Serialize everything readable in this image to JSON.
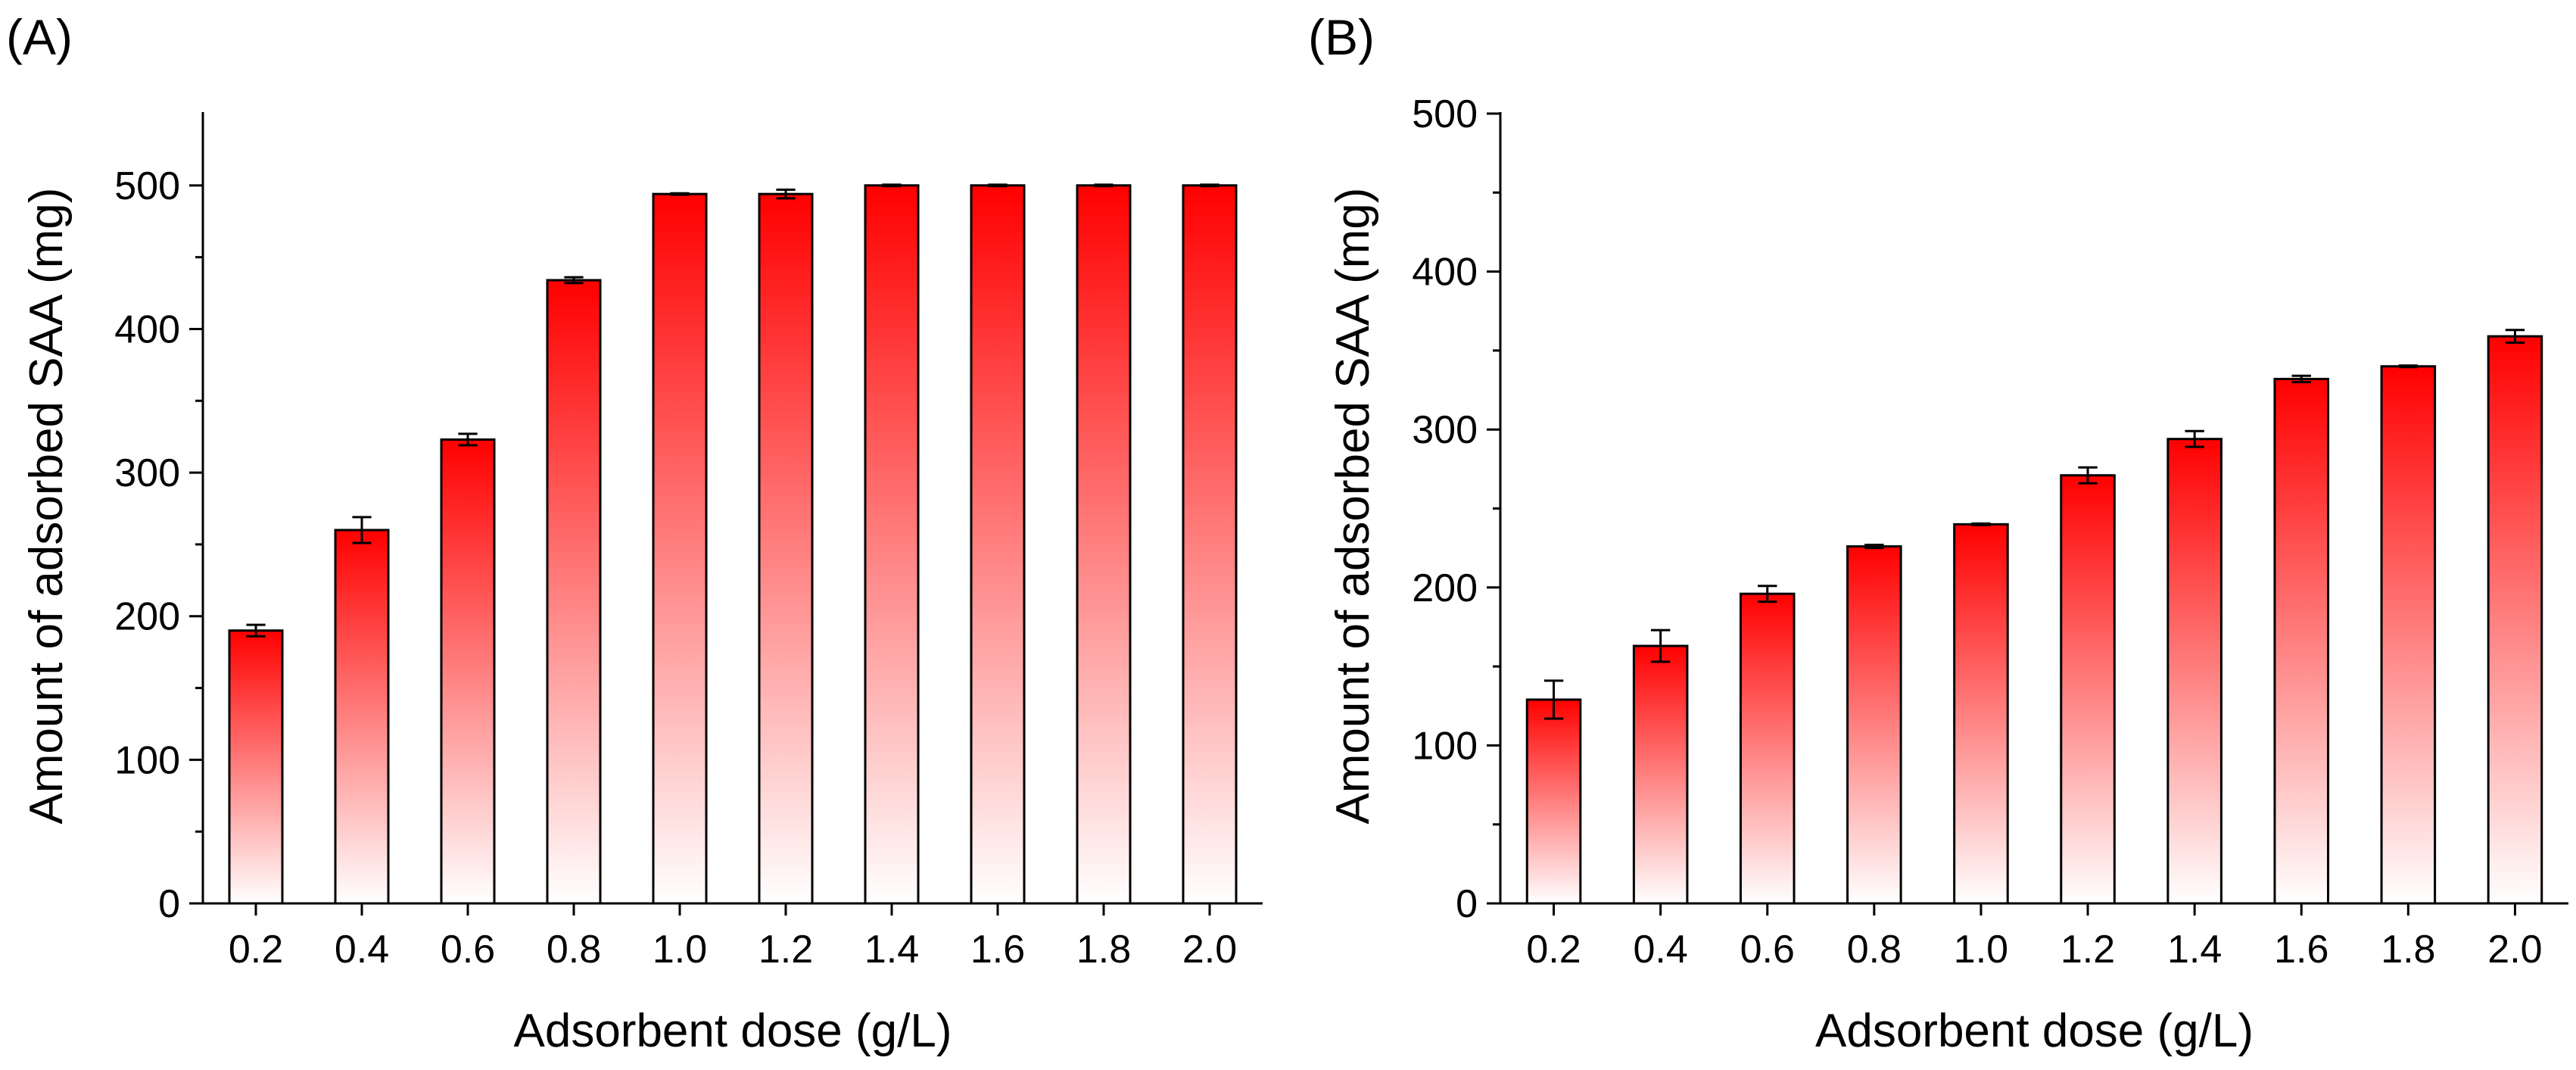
{
  "figure": {
    "panel_a_label": "(A)",
    "panel_b_label": "(B)"
  },
  "colors": {
    "bar_top": "#ff0000",
    "bar_bottom": "#ffffff",
    "axis": "#000000"
  },
  "chart_data": [
    {
      "type": "bar",
      "panel": "(A)",
      "title": "",
      "xlabel": "Adsorbent dose (g/L)",
      "ylabel": "Amount of adsorbed SAA (mg)",
      "categories": [
        "0.2",
        "0.4",
        "0.6",
        "0.8",
        "1.0",
        "1.2",
        "1.4",
        "1.6",
        "1.8",
        "2.0"
      ],
      "values": [
        190,
        260,
        323,
        434,
        494,
        494,
        500,
        500,
        500,
        500
      ],
      "errors": [
        4,
        9,
        4,
        2,
        0.5,
        3,
        0.5,
        0.5,
        0.5,
        0.5
      ],
      "ylim": [
        0,
        550
      ],
      "yticks": [
        0,
        100,
        200,
        300,
        400,
        500
      ],
      "ytick_labels": [
        "0",
        "100",
        "200",
        "300",
        "400",
        "500"
      ],
      "grid": false,
      "legend": "none"
    },
    {
      "type": "bar",
      "panel": "(B)",
      "title": "",
      "xlabel": "Adsorbent dose (g/L)",
      "ylabel": "Amount of adsorbed SAA (mg)",
      "categories": [
        "0.2",
        "0.4",
        "0.6",
        "0.8",
        "1.0",
        "1.2",
        "1.4",
        "1.6",
        "1.8",
        "2.0"
      ],
      "values": [
        129,
        163,
        196,
        226,
        240,
        271,
        294,
        332,
        340,
        359
      ],
      "errors": [
        12,
        10,
        5,
        1,
        0.5,
        5,
        5,
        2,
        0.5,
        4
      ],
      "ylim": [
        0,
        500
      ],
      "yticks": [
        0,
        100,
        200,
        300,
        400,
        500
      ],
      "ytick_labels": [
        "0",
        "100",
        "200",
        "300",
        "400",
        "500"
      ],
      "grid": false,
      "legend": "none"
    }
  ]
}
